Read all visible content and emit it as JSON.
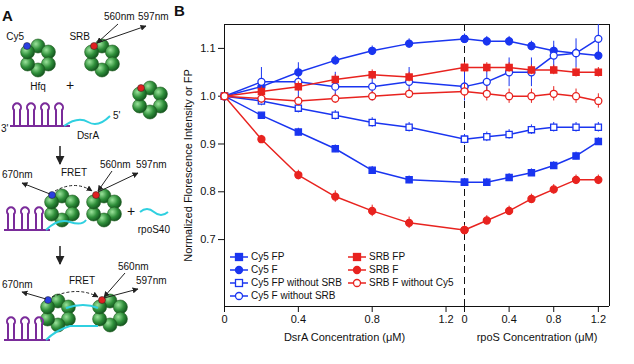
{
  "chart_data": [
    {
      "type": "line",
      "panel_label": "B",
      "x_label": "DsrA Concentration (μM)",
      "y_label": "Normalized Florescence Intensity or FP",
      "xlim": [
        0,
        1.3
      ],
      "xticks": [
        0,
        0.4,
        0.8,
        1.2
      ],
      "ylim": [
        0.56,
        1.15
      ],
      "yticks": [
        0.7,
        0.8,
        0.9,
        {
          "value": 1,
          "label": "1.0"
        },
        1.1
      ],
      "legend": "bottom-left",
      "x": [
        0,
        0.2,
        0.4,
        0.6,
        0.8,
        1.0,
        1.3
      ],
      "series": [
        {
          "name": "Cy5 FP",
          "color": "#1a35f0",
          "marker": "square",
          "values": [
            1.0,
            0.96,
            0.925,
            0.89,
            0.845,
            0.825,
            0.82
          ],
          "errors": [
            0,
            0.005,
            0.008,
            0.008,
            0.008,
            0.008,
            0.008
          ]
        },
        {
          "name": "Cy5 F",
          "color": "#1a35f0",
          "marker": "circle",
          "values": [
            1.0,
            1.02,
            1.05,
            1.075,
            1.095,
            1.11,
            1.12
          ],
          "errors": [
            0,
            0.01,
            0.01,
            0.01,
            0.01,
            0.01,
            0.01
          ]
        },
        {
          "name": "Cy5 FP without SRB",
          "color": "#1a35f0",
          "marker": "open-square",
          "values": [
            1.0,
            0.99,
            0.975,
            0.96,
            0.945,
            0.935,
            0.91
          ],
          "errors": [
            0,
            0.01,
            0.01,
            0.01,
            0.01,
            0.01,
            0.01
          ]
        },
        {
          "name": "Cy5 F without SRB",
          "color": "#1a35f0",
          "marker": "open-circle",
          "values": [
            1.0,
            1.03,
            1.03,
            1.02,
            1.02,
            1.03,
            1.02
          ],
          "errors": [
            0,
            0.03,
            0.04,
            0.03,
            0.03,
            0.03,
            0.03
          ]
        },
        {
          "name": "SRB FP",
          "color": "#e8231f",
          "marker": "square",
          "values": [
            1.0,
            1.01,
            1.02,
            1.035,
            1.045,
            1.04,
            1.06
          ],
          "errors": [
            0,
            0.01,
            0.01,
            0.01,
            0.01,
            0.01,
            0.01
          ]
        },
        {
          "name": "SRB F",
          "color": "#e8231f",
          "marker": "circle",
          "values": [
            1.0,
            0.91,
            0.835,
            0.79,
            0.76,
            0.735,
            0.72
          ],
          "errors": [
            0,
            0.008,
            0.01,
            0.012,
            0.012,
            0.012,
            0.01
          ]
        },
        {
          "name": "SRB F without Cy5",
          "color": "#e8231f",
          "marker": "open-circle",
          "values": [
            1.0,
            0.995,
            0.99,
            0.995,
            1.0,
            1.005,
            1.01
          ],
          "errors": [
            0,
            0.01,
            0.01,
            0.01,
            0.01,
            0.01,
            0.01
          ]
        }
      ]
    },
    {
      "type": "line",
      "x_label": "rpoS Concentration (μM)",
      "xlim": [
        0,
        1.3
      ],
      "xticks": [
        0,
        0.4,
        0.8,
        1.2
      ],
      "ylim": [
        0.56,
        1.15
      ],
      "tick_labels": "x",
      "x": [
        0,
        0.2,
        0.4,
        0.6,
        0.8,
        1.0,
        1.2
      ],
      "series": [
        {
          "name": "Cy5 FP",
          "color": "#1a35f0",
          "marker": "square",
          "values": [
            0.82,
            0.82,
            0.83,
            0.84,
            0.855,
            0.875,
            0.905
          ],
          "errors": [
            0.008,
            0.008,
            0.008,
            0.008,
            0.008,
            0.008,
            0.008
          ]
        },
        {
          "name": "Cy5 F",
          "color": "#1a35f0",
          "marker": "circle",
          "values": [
            1.12,
            1.115,
            1.115,
            1.105,
            1.095,
            1.09,
            1.085
          ],
          "errors": [
            0.01,
            0.01,
            0.01,
            0.01,
            0.01,
            0.01,
            0.01
          ]
        },
        {
          "name": "Cy5 FP without SRB",
          "color": "#1a35f0",
          "marker": "open-square",
          "values": [
            0.91,
            0.915,
            0.92,
            0.93,
            0.935,
            0.935,
            0.935
          ],
          "errors": [
            0.01,
            0.01,
            0.01,
            0.01,
            0.01,
            0.01,
            0.01
          ]
        },
        {
          "name": "Cy5 F without SRB",
          "color": "#1a35f0",
          "marker": "open-circle",
          "values": [
            1.02,
            1.03,
            1.05,
            1.05,
            1.085,
            1.09,
            1.12
          ],
          "errors": [
            0.03,
            0.03,
            0.03,
            0.03,
            0.03,
            0.03,
            0.03
          ]
        },
        {
          "name": "SRB FP",
          "color": "#e8231f",
          "marker": "square",
          "values": [
            1.06,
            1.06,
            1.06,
            1.055,
            1.055,
            1.05,
            1.05
          ],
          "errors": [
            0.01,
            0.01,
            0.01,
            0.01,
            0.01,
            0.01,
            0.01
          ]
        },
        {
          "name": "SRB F",
          "color": "#e8231f",
          "marker": "circle",
          "values": [
            0.72,
            0.74,
            0.76,
            0.785,
            0.805,
            0.825,
            0.825
          ],
          "errors": [
            0.01,
            0.01,
            0.01,
            0.01,
            0.01,
            0.01,
            0.01
          ]
        },
        {
          "name": "SRB F without Cy5",
          "color": "#e8231f",
          "marker": "open-circle",
          "values": [
            1.01,
            1.005,
            1.0,
            1.0,
            1.005,
            1.0,
            0.99
          ],
          "errors": [
            0.015,
            0.015,
            0.015,
            0.015,
            0.015,
            0.015,
            0.015
          ]
        }
      ]
    }
  ],
  "diagram": {
    "panel_label": "A",
    "stage1": {
      "cy5": "Cy5",
      "hfq": "Hfq",
      "srb": "SRB",
      "excitation": "560nm",
      "emission": "597nm",
      "plus": "+",
      "rna": "DsrA",
      "end3": "3'",
      "end5": "5'"
    },
    "stage2": {
      "fret": "FRET",
      "cy5_emission": "670nm",
      "excitation": "560nm",
      "emission": "597nm",
      "plus": "+",
      "rna": "rpoS40"
    },
    "stage3": {
      "fret": "FRET",
      "cy5_emission": "670nm",
      "excitation": "560nm",
      "emission": "597nm"
    }
  }
}
